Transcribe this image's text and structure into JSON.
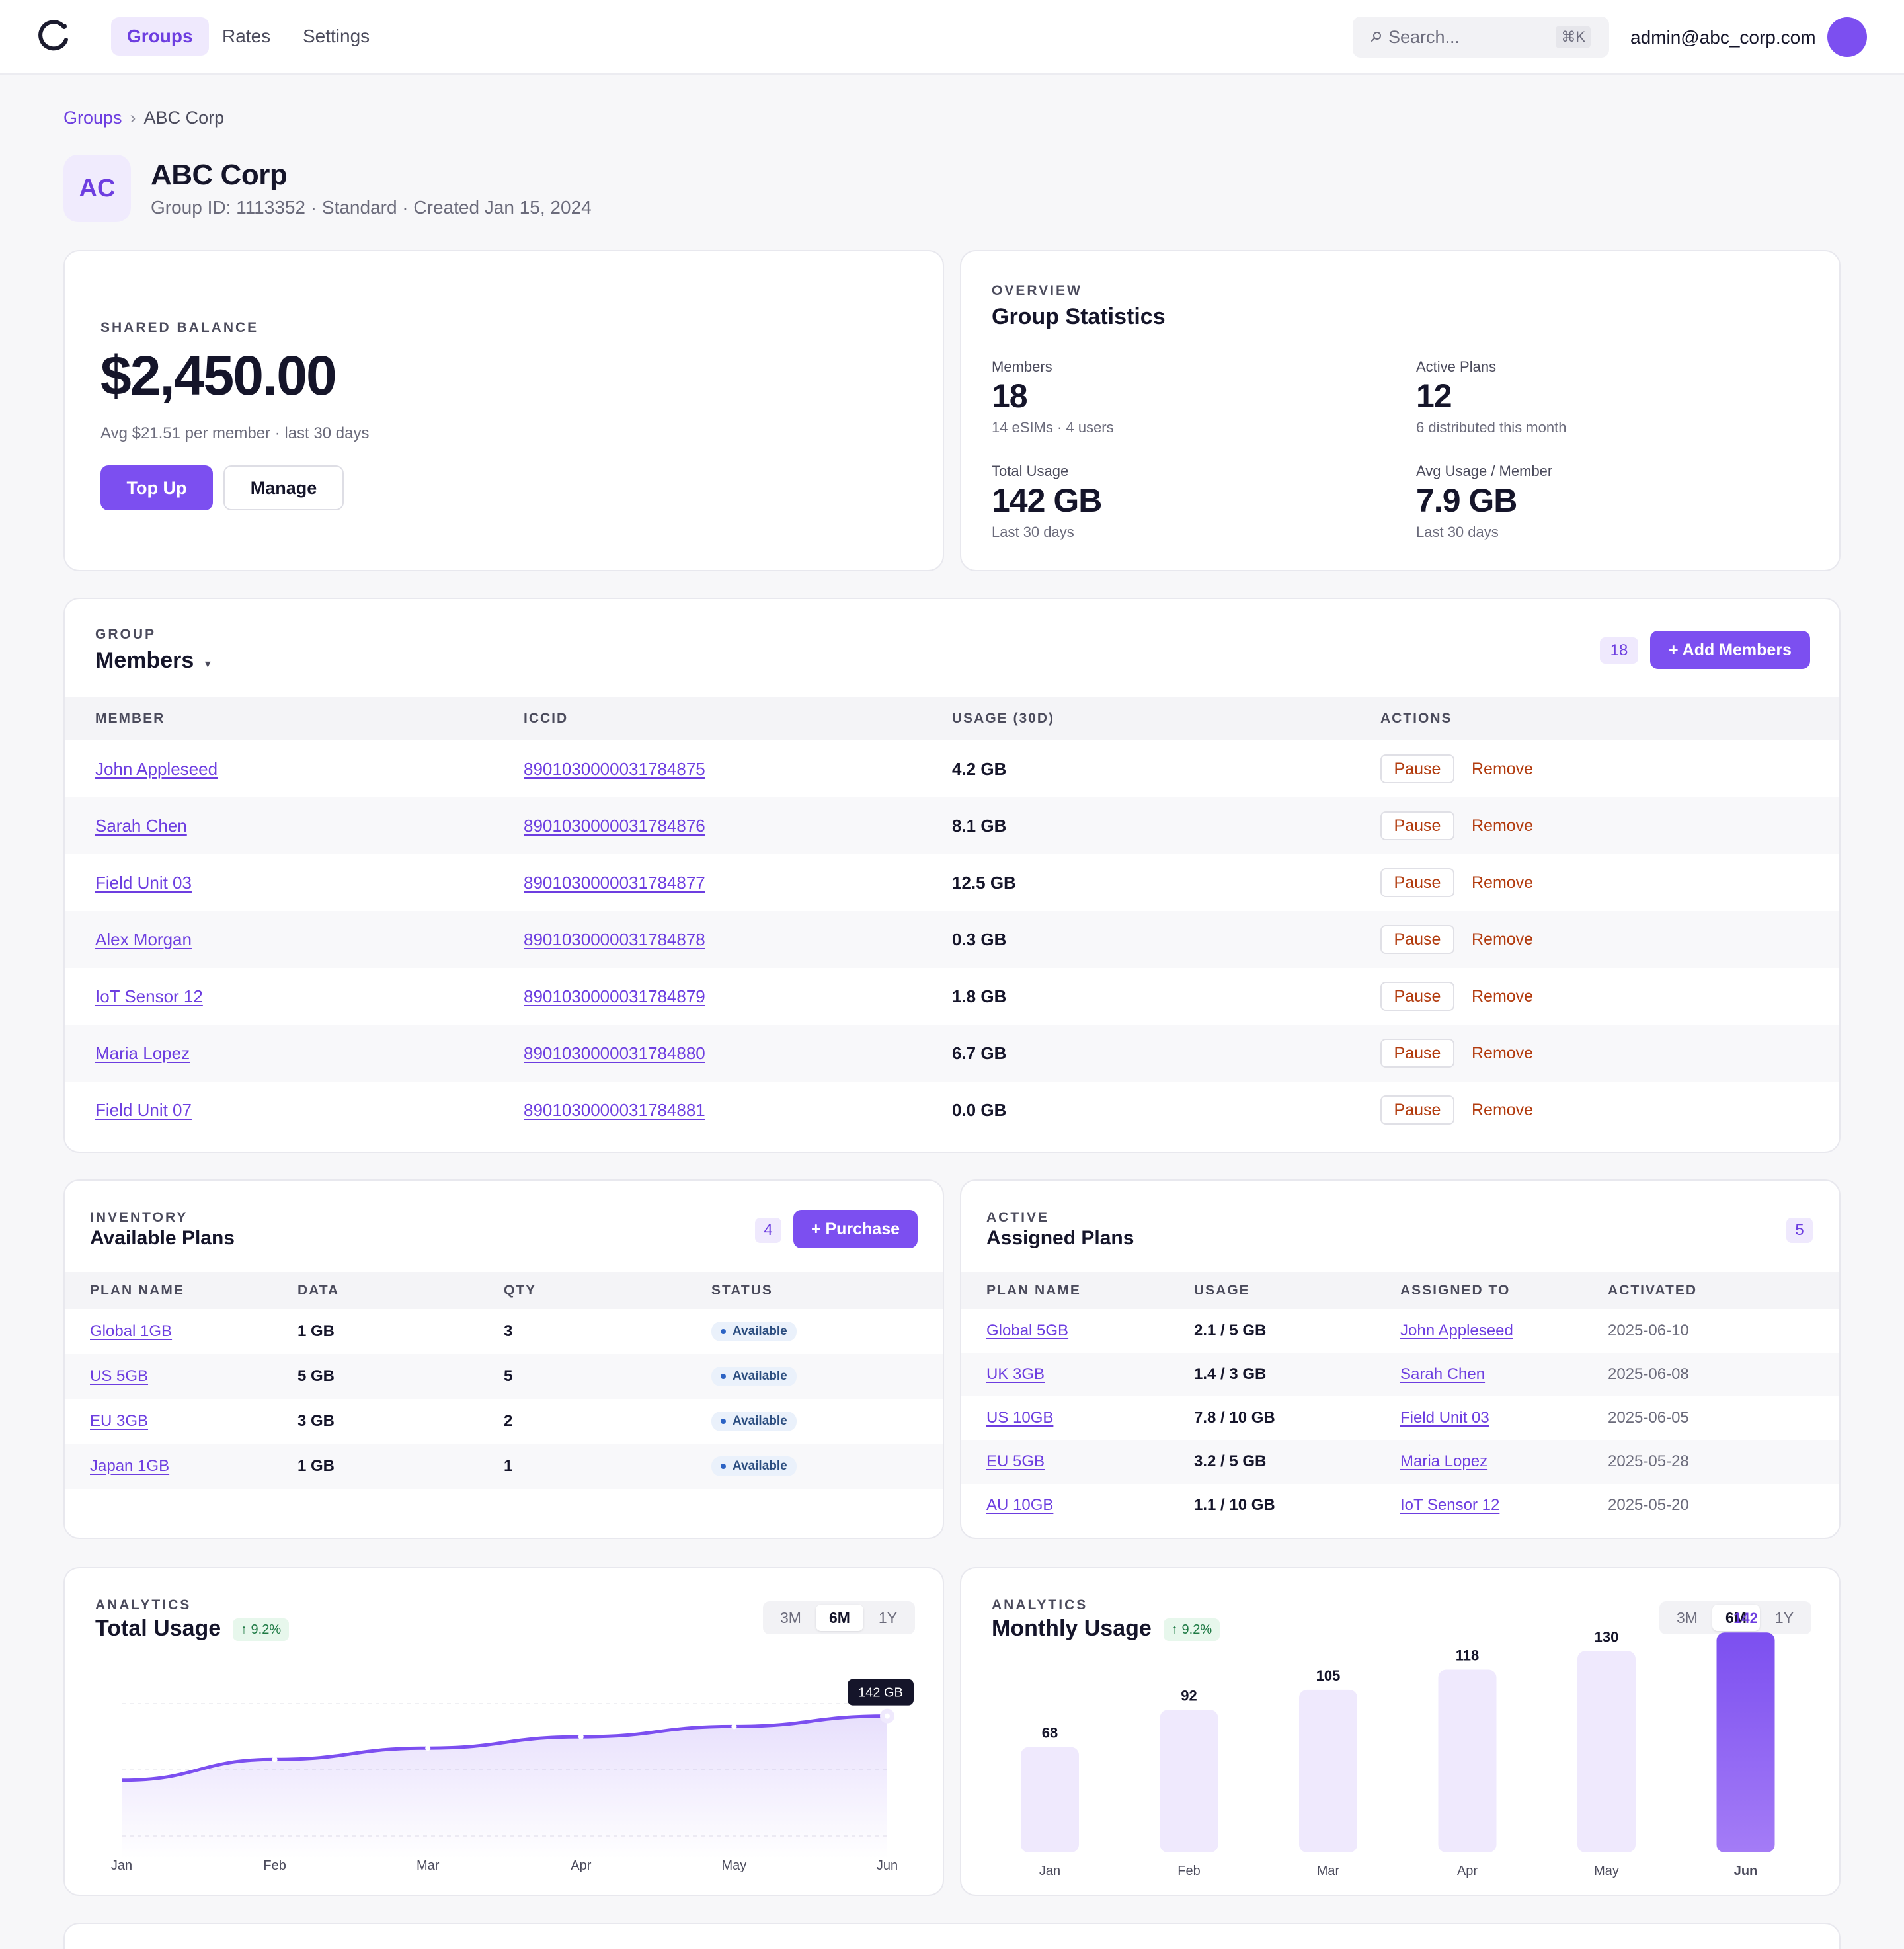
{
  "nav": {
    "items": [
      {
        "label": "Groups",
        "active": true
      },
      {
        "label": "Rates",
        "active": false
      },
      {
        "label": "Settings",
        "active": false
      }
    ],
    "search_placeholder": "Search...",
    "search_shortcut": "⌘K",
    "user_email": "admin@abc_corp.com"
  },
  "breadcrumb": {
    "parent": "Groups",
    "separator": "›",
    "current": "ABC Corp"
  },
  "group": {
    "initials": "AC",
    "name": "ABC Corp",
    "subtitle": "Group ID: 1113352 · Standard · Created Jan 15, 2024"
  },
  "balance": {
    "eyebrow": "SHARED BALANCE",
    "amount": "$2,450.00",
    "note": "Avg $21.51 per member · last 30 days",
    "topup_label": "Top Up",
    "manage_label": "Manage"
  },
  "stats": {
    "eyebrow": "OVERVIEW",
    "title": "Group Statistics",
    "items": [
      {
        "label": "Members",
        "value": "18",
        "sub": "14 eSIMs · 4 users"
      },
      {
        "label": "Active Plans",
        "value": "12",
        "sub": "6 distributed this month"
      },
      {
        "label": "Total Usage",
        "value": "142 GB",
        "sub": "Last 30 days"
      },
      {
        "label": "Avg Usage / Member",
        "value": "7.9 GB",
        "sub": "Last 30 days"
      }
    ]
  },
  "members": {
    "eyebrow": "GROUP",
    "title": "Members",
    "dropdown_icon": "▾",
    "count": "18",
    "add_label": "+ Add Members",
    "columns": [
      "MEMBER",
      "ICCID",
      "USAGE (30D)",
      "ACTIONS"
    ],
    "pause_label": "Pause",
    "remove_label": "Remove",
    "rows": [
      {
        "member": "John Appleseed",
        "iccid": "8901030000031784875",
        "usage": "4.2 GB"
      },
      {
        "member": "Sarah Chen",
        "iccid": "8901030000031784876",
        "usage": "8.1 GB"
      },
      {
        "member": "Field Unit 03",
        "iccid": "8901030000031784877",
        "usage": "12.5 GB"
      },
      {
        "member": "Alex Morgan",
        "iccid": "8901030000031784878",
        "usage": "0.3 GB"
      },
      {
        "member": "IoT Sensor 12",
        "iccid": "8901030000031784879",
        "usage": "1.8 GB"
      },
      {
        "member": "Maria Lopez",
        "iccid": "8901030000031784880",
        "usage": "6.7 GB"
      },
      {
        "member": "Field Unit 07",
        "iccid": "8901030000031784881",
        "usage": "0.0 GB"
      }
    ]
  },
  "available_plans": {
    "eyebrow": "INVENTORY",
    "title": "Available Plans",
    "count": "4",
    "purchase_label": "+ Purchase",
    "columns": [
      "PLAN NAME",
      "DATA",
      "QTY",
      "STATUS"
    ],
    "rows": [
      {
        "name": "Global 1GB",
        "data": "1 GB",
        "qty": "3",
        "status": "Available"
      },
      {
        "name": "US 5GB",
        "data": "5 GB",
        "qty": "5",
        "status": "Available"
      },
      {
        "name": "EU 3GB",
        "data": "3 GB",
        "qty": "2",
        "status": "Available"
      },
      {
        "name": "Japan 1GB",
        "data": "1 GB",
        "qty": "1",
        "status": "Available"
      }
    ]
  },
  "assigned_plans": {
    "eyebrow": "ACTIVE",
    "title": "Assigned Plans",
    "count": "5",
    "columns": [
      "PLAN NAME",
      "USAGE",
      "ASSIGNED TO",
      "ACTIVATED"
    ],
    "rows": [
      {
        "name": "Global 5GB",
        "usage": "2.1 / 5 GB",
        "assigned_to": "John Appleseed",
        "activated": "2025-06-10"
      },
      {
        "name": "UK 3GB",
        "usage": "1.4 / 3 GB",
        "assigned_to": "Sarah Chen",
        "activated": "2025-06-08"
      },
      {
        "name": "US 10GB",
        "usage": "7.8 / 10 GB",
        "assigned_to": "Field Unit 03",
        "activated": "2025-06-05"
      },
      {
        "name": "EU 5GB",
        "usage": "3.2 / 5 GB",
        "assigned_to": "Maria Lopez",
        "activated": "2025-05-28"
      },
      {
        "name": "AU 10GB",
        "usage": "1.1 / 10 GB",
        "assigned_to": "IoT Sensor 12",
        "activated": "2025-05-20"
      }
    ]
  },
  "total_usage": {
    "eyebrow": "ANALYTICS",
    "title": "Total Usage",
    "trend": "↑ 9.2%",
    "ranges": [
      {
        "label": "3M",
        "on": false
      },
      {
        "label": "6M",
        "on": true
      },
      {
        "label": "1Y",
        "on": false
      }
    ],
    "tooltip": "142 GB"
  },
  "monthly_usage": {
    "eyebrow": "ANALYTICS",
    "title": "Monthly Usage",
    "trend": "↑ 9.2%",
    "ranges": [
      {
        "label": "3M",
        "on": false
      },
      {
        "label": "6M",
        "on": true
      },
      {
        "label": "1Y",
        "on": false
      }
    ]
  },
  "chart_data": [
    {
      "type": "area",
      "title": "Total Usage",
      "categories": [
        "Jan",
        "Feb",
        "Mar",
        "Apr",
        "May",
        "Jun"
      ],
      "values": [
        68,
        92,
        105,
        118,
        130,
        142
      ],
      "ylim": [
        0,
        160
      ],
      "color": "#7c4ff0"
    },
    {
      "type": "bar",
      "title": "Monthly Usage",
      "categories": [
        "Jan",
        "Feb",
        "Mar",
        "Apr",
        "May",
        "Jun"
      ],
      "values": [
        68,
        92,
        105,
        118,
        130,
        142
      ],
      "ylim": [
        0,
        160
      ],
      "highlight": "Jun",
      "color": "#7c4ff0",
      "muted_color": "#efe9fd"
    }
  ]
}
